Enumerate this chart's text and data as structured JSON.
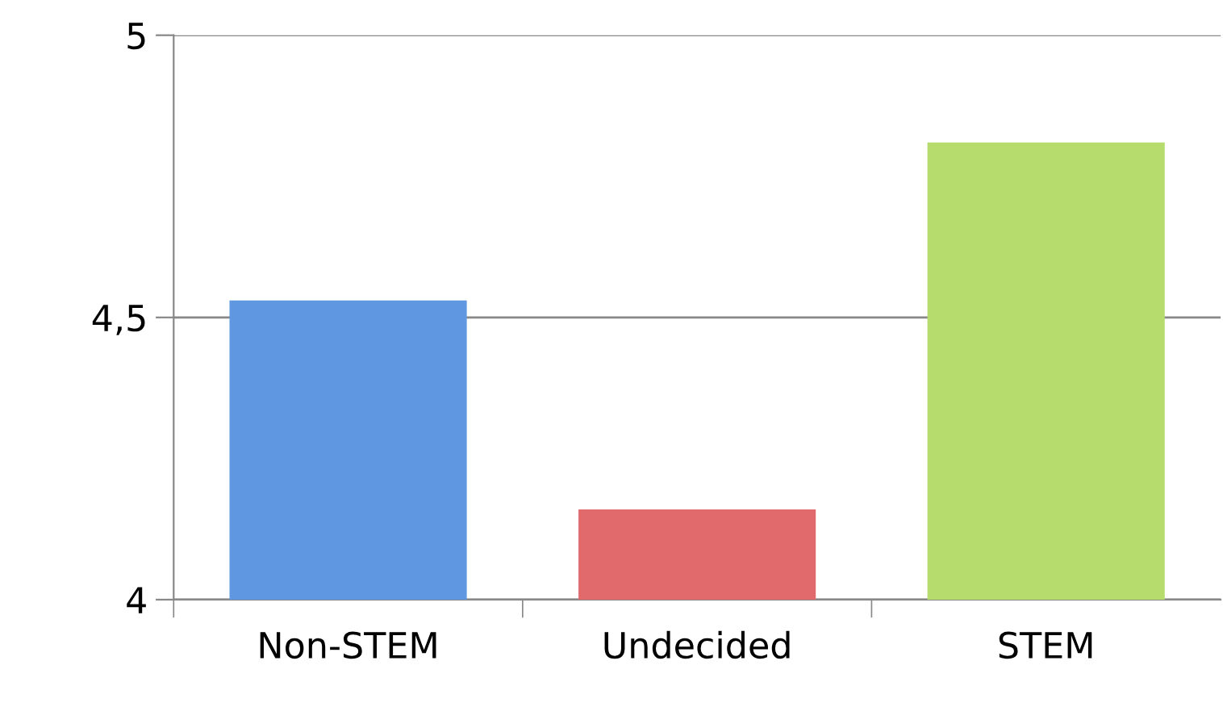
{
  "chart_data": {
    "type": "bar",
    "categories": [
      "Non-STEM",
      "Undecided",
      "STEM"
    ],
    "values": [
      4.53,
      4.16,
      4.81
    ],
    "colors": [
      "#5f97e0",
      "#e06a6c",
      "#b5dc6c"
    ],
    "ylim": [
      4,
      5
    ],
    "yticks": [
      4,
      {
        "value": 4.5,
        "label": "4,5"
      },
      5
    ],
    "grid": "y",
    "legend": false
  }
}
